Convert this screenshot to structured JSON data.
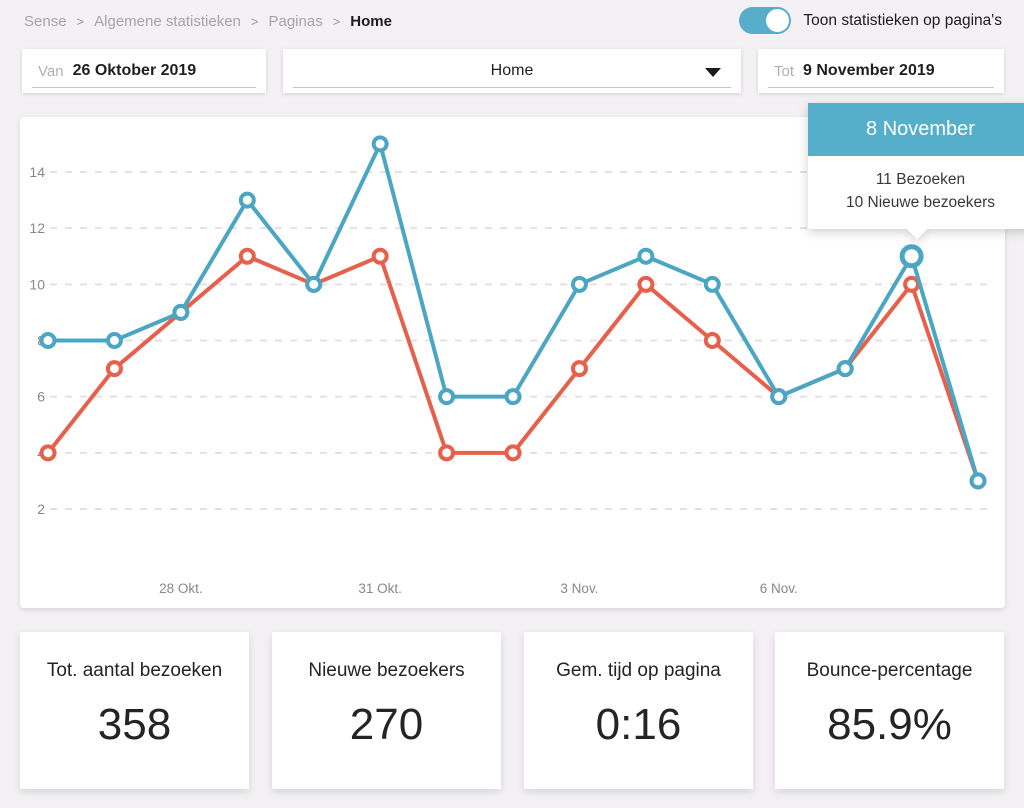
{
  "breadcrumb": {
    "items": [
      "Sense",
      "Algemene statistieken",
      "Paginas"
    ],
    "separator": ">",
    "current": "Home"
  },
  "toggle": {
    "label": "Toon statistieken op pagina's",
    "state": "on"
  },
  "filters": {
    "from": {
      "label": "Van",
      "value": "26 Oktober 2019"
    },
    "page_select": {
      "value": "Home"
    },
    "to": {
      "label": "Tot",
      "value": "9 November 2019"
    }
  },
  "chart_data": {
    "type": "line",
    "title": "",
    "xlabel": "",
    "ylabel": "",
    "y_ticks": [
      2,
      4,
      6,
      8,
      10,
      12,
      14
    ],
    "ylim": [
      0,
      16
    ],
    "grid": "horizontal-dashed",
    "legend_position": "none",
    "points_per_series": 15,
    "x_tick_labels": [
      {
        "index": 2,
        "label": "28 Okt."
      },
      {
        "index": 5,
        "label": "31 Okt."
      },
      {
        "index": 8,
        "label": "3 Nov."
      },
      {
        "index": 11,
        "label": "6 Nov."
      }
    ],
    "series": [
      {
        "name": "Bezoeken",
        "color": "#4BA6C4",
        "values": [
          8,
          8,
          9,
          13,
          10,
          15,
          6,
          6,
          10,
          11,
          10,
          6,
          7,
          11,
          3
        ]
      },
      {
        "name": "Nieuwe bezoekers",
        "color": "#E7604B",
        "values": [
          4,
          7,
          9,
          11,
          10,
          11,
          4,
          4,
          7,
          10,
          8,
          6,
          7,
          10,
          3
        ]
      }
    ],
    "highlight": {
      "series_index": 0,
      "point_index": 13,
      "date": "8 November"
    }
  },
  "tooltip": {
    "title": "8 November",
    "lines": [
      "11 Bezoeken",
      "10 Nieuwe bezoekers"
    ]
  },
  "cards": [
    {
      "label": "Tot. aantal bezoeken",
      "value": "358"
    },
    {
      "label": "Nieuwe bezoekers",
      "value": "270"
    },
    {
      "label": "Gem. tijd op pagina",
      "value": "0:16"
    },
    {
      "label": "Bounce-percentage",
      "value": "85.9%"
    }
  ],
  "colors": {
    "accent_teal": "#55AECA",
    "line_blue": "#4BA6C4",
    "line_red": "#E7604B",
    "page_background": "#F3F1F4",
    "grid_line": "#E4E0E4"
  }
}
